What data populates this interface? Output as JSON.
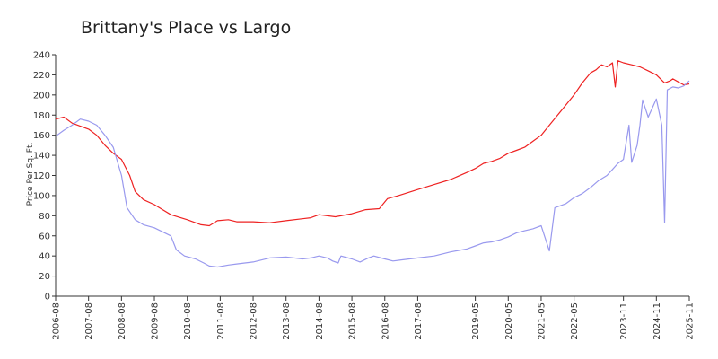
{
  "chart_data": {
    "type": "line",
    "title": "Brittany's Place vs Largo",
    "xlabel": "",
    "ylabel": "Price Per Sq. Ft.",
    "ylim": [
      0,
      240
    ],
    "yticks": [
      0,
      20,
      40,
      60,
      80,
      100,
      120,
      140,
      160,
      180,
      200,
      220,
      240
    ],
    "xlim": [
      "2006-08",
      "2025-11"
    ],
    "xtick_labels": [
      "2006-08",
      "2007-08",
      "2008-08",
      "2009-08",
      "2010-08",
      "2011-08",
      "2012-08",
      "2013-08",
      "2014-08",
      "2015-08",
      "2016-08",
      "2017-08",
      "2019-05",
      "2020-05",
      "2021-05",
      "2022-05",
      "2023-11",
      "2024-11",
      "2025-11"
    ],
    "grid": false,
    "legend": "none",
    "series": [
      {
        "color": "#ee2222",
        "points": [
          [
            "2006-08",
            176
          ],
          [
            "2006-11",
            178
          ],
          [
            "2007-02",
            172
          ],
          [
            "2007-08",
            166
          ],
          [
            "2007-11",
            160
          ],
          [
            "2008-02",
            150
          ],
          [
            "2008-05",
            142
          ],
          [
            "2008-08",
            136
          ],
          [
            "2008-11",
            120
          ],
          [
            "2009-01",
            104
          ],
          [
            "2009-04",
            96
          ],
          [
            "2009-08",
            91
          ],
          [
            "2009-11",
            86
          ],
          [
            "2010-02",
            81
          ],
          [
            "2010-08",
            76
          ],
          [
            "2011-01",
            71
          ],
          [
            "2011-04",
            70
          ],
          [
            "2011-07",
            75
          ],
          [
            "2011-11",
            76
          ],
          [
            "2012-02",
            74
          ],
          [
            "2012-08",
            74
          ],
          [
            "2013-02",
            73
          ],
          [
            "2013-08",
            75
          ],
          [
            "2014-02",
            77
          ],
          [
            "2014-05",
            78
          ],
          [
            "2014-08",
            81
          ],
          [
            "2015-02",
            79
          ],
          [
            "2015-08",
            82
          ],
          [
            "2016-01",
            86
          ],
          [
            "2016-06",
            87
          ],
          [
            "2016-09",
            97
          ],
          [
            "2017-01",
            100
          ],
          [
            "2017-08",
            106
          ],
          [
            "2018-02",
            111
          ],
          [
            "2018-08",
            116
          ],
          [
            "2019-02",
            123
          ],
          [
            "2019-05",
            127
          ],
          [
            "2019-08",
            132
          ],
          [
            "2019-11",
            134
          ],
          [
            "2020-02",
            137
          ],
          [
            "2020-05",
            142
          ],
          [
            "2020-08",
            145
          ],
          [
            "2020-11",
            148
          ],
          [
            "2021-02",
            154
          ],
          [
            "2021-05",
            160
          ],
          [
            "2021-08",
            170
          ],
          [
            "2021-11",
            180
          ],
          [
            "2022-02",
            190
          ],
          [
            "2022-05",
            200
          ],
          [
            "2022-08",
            212
          ],
          [
            "2022-11",
            222
          ],
          [
            "2023-01",
            225
          ],
          [
            "2023-03",
            230
          ],
          [
            "2023-05",
            228
          ],
          [
            "2023-07",
            232
          ],
          [
            "2023-08",
            208
          ],
          [
            "2023-09",
            234
          ],
          [
            "2023-11",
            232
          ],
          [
            "2024-02",
            230
          ],
          [
            "2024-05",
            228
          ],
          [
            "2024-08",
            224
          ],
          [
            "2024-11",
            220
          ],
          [
            "2025-02",
            212
          ],
          [
            "2025-04",
            214
          ],
          [
            "2025-05",
            216
          ],
          [
            "2025-07",
            213
          ],
          [
            "2025-09",
            210
          ],
          [
            "2025-11",
            211
          ]
        ]
      },
      {
        "color": "#9999ee",
        "points": [
          [
            "2006-08",
            159
          ],
          [
            "2006-11",
            165
          ],
          [
            "2007-02",
            170
          ],
          [
            "2007-05",
            176
          ],
          [
            "2007-08",
            174
          ],
          [
            "2007-11",
            170
          ],
          [
            "2008-02",
            160
          ],
          [
            "2008-05",
            148
          ],
          [
            "2008-08",
            120
          ],
          [
            "2008-10",
            88
          ],
          [
            "2009-01",
            76
          ],
          [
            "2009-04",
            71
          ],
          [
            "2009-08",
            68
          ],
          [
            "2009-11",
            64
          ],
          [
            "2010-02",
            60
          ],
          [
            "2010-04",
            46
          ],
          [
            "2010-07",
            40
          ],
          [
            "2010-11",
            37
          ],
          [
            "2011-02",
            33
          ],
          [
            "2011-04",
            30
          ],
          [
            "2011-07",
            29
          ],
          [
            "2011-11",
            31
          ],
          [
            "2012-02",
            32
          ],
          [
            "2012-08",
            34
          ],
          [
            "2013-02",
            38
          ],
          [
            "2013-08",
            39
          ],
          [
            "2014-02",
            37
          ],
          [
            "2014-05",
            38
          ],
          [
            "2014-08",
            40
          ],
          [
            "2014-11",
            38
          ],
          [
            "2015-01",
            35
          ],
          [
            "2015-03",
            33
          ],
          [
            "2015-04",
            40
          ],
          [
            "2015-08",
            37
          ],
          [
            "2015-11",
            34
          ],
          [
            "2016-02",
            38
          ],
          [
            "2016-04",
            40
          ],
          [
            "2016-08",
            37
          ],
          [
            "2016-11",
            35
          ],
          [
            "2017-02",
            36
          ],
          [
            "2017-08",
            38
          ],
          [
            "2018-02",
            40
          ],
          [
            "2018-08",
            44
          ],
          [
            "2019-02",
            47
          ],
          [
            "2019-05",
            50
          ],
          [
            "2019-08",
            53
          ],
          [
            "2019-11",
            54
          ],
          [
            "2020-02",
            56
          ],
          [
            "2020-05",
            59
          ],
          [
            "2020-08",
            63
          ],
          [
            "2020-11",
            65
          ],
          [
            "2021-02",
            67
          ],
          [
            "2021-05",
            70
          ],
          [
            "2021-08",
            45
          ],
          [
            "2021-10",
            88
          ],
          [
            "2022-02",
            92
          ],
          [
            "2022-05",
            98
          ],
          [
            "2022-08",
            102
          ],
          [
            "2022-11",
            108
          ],
          [
            "2023-02",
            115
          ],
          [
            "2023-05",
            120
          ],
          [
            "2023-07",
            126
          ],
          [
            "2023-09",
            132
          ],
          [
            "2023-11",
            136
          ],
          [
            "2024-01",
            170
          ],
          [
            "2024-02",
            133
          ],
          [
            "2024-04",
            150
          ],
          [
            "2024-05",
            170
          ],
          [
            "2024-06",
            195
          ],
          [
            "2024-08",
            178
          ],
          [
            "2024-10",
            190
          ],
          [
            "2024-11",
            196
          ],
          [
            "2025-01",
            170
          ],
          [
            "2025-02",
            73
          ],
          [
            "2025-03",
            205
          ],
          [
            "2025-05",
            208
          ],
          [
            "2025-07",
            207
          ],
          [
            "2025-09",
            209
          ],
          [
            "2025-11",
            214
          ]
        ]
      }
    ]
  }
}
